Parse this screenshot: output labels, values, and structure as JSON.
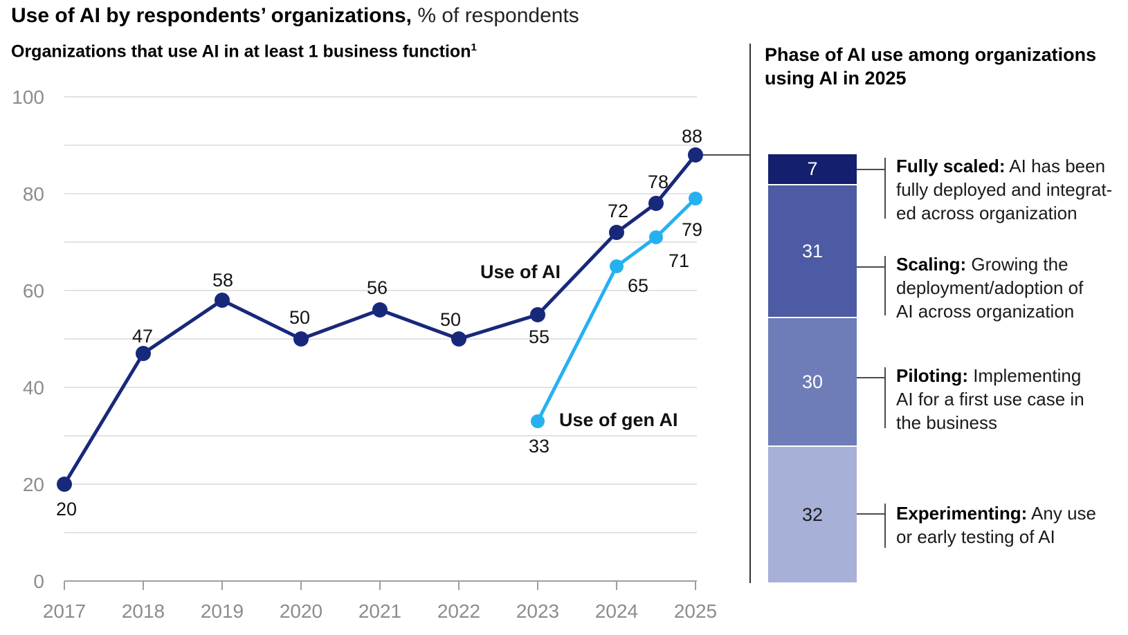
{
  "title": {
    "bold": "Use of AI by respondents’ organizations,",
    "regular": "% of respondents"
  },
  "subtitle": {
    "text": "Organizations that use AI in at least 1 business function",
    "footnote_marker": "1"
  },
  "right_panel": {
    "title_line1": "Phase of AI use among organizations",
    "title_line2": "using AI in 2025"
  },
  "colors": {
    "use_of_ai_line": "#18287a",
    "use_of_gen_ai_line": "#25b1f0",
    "gridline": "#d9d9d9",
    "axis": "#9e9e9e",
    "axis_label": "#8c8c8c",
    "data_label": "#141414",
    "connector": "#4a4a4a",
    "divider": "#333333"
  },
  "chart_data": [
    {
      "type": "line",
      "title": "Organizations that use AI in at least 1 business function",
      "unit": "% of respondents",
      "ylim": [
        0,
        100
      ],
      "ytick_labels": [
        0,
        20,
        40,
        60,
        80,
        100
      ],
      "gridline_step": 10,
      "grid": true,
      "xtick_labels": [
        "2017",
        "2018",
        "2019",
        "2020",
        "2021",
        "2022",
        "2023",
        "2024",
        "2025"
      ],
      "legend_position": "inline-annotations",
      "series": [
        {
          "name": "Use of AI",
          "color": "#18287a",
          "x": [
            2017,
            2018,
            2019,
            2020,
            2021,
            2022,
            2023,
            2024,
            2024.5,
            2025
          ],
          "values": [
            20,
            47,
            58,
            50,
            56,
            50,
            55,
            72,
            78,
            88
          ]
        },
        {
          "name": "Use of gen AI",
          "color": "#25b1f0",
          "x": [
            2023,
            2024,
            2024.5,
            2025
          ],
          "values": [
            33,
            65,
            71,
            79
          ]
        }
      ]
    },
    {
      "type": "bar",
      "stacked": true,
      "title": "Phase of AI use among organizations using AI in 2025",
      "total": 100,
      "segments": [
        {
          "label": "Fully scaled",
          "value": 7,
          "color": "#141f6e",
          "value_text_color": "#ffffff",
          "term": "Fully scaled:",
          "desc_lines": [
            "AI has been",
            "fully deployed and integrat-",
            "ed across organization"
          ],
          "description": "AI has been fully deployed and integrated across organization"
        },
        {
          "label": "Scaling",
          "value": 31,
          "color": "#4c5ba3",
          "value_text_color": "#ffffff",
          "term": "Scaling:",
          "desc_lines": [
            "Growing the",
            "deployment/adoption of",
            "AI across organization"
          ],
          "description": "Growing the deployment/adoption of AI across organization"
        },
        {
          "label": "Piloting",
          "value": 30,
          "color": "#6e7cb8",
          "value_text_color": "#ffffff",
          "term": "Piloting:",
          "desc_lines": [
            "Implementing",
            "AI for a first use case in",
            "the business"
          ],
          "description": "Implementing AI for a first use case in the business"
        },
        {
          "label": "Experimenting",
          "value": 32,
          "color": "#a7b0d7",
          "value_text_color": "#1a1a1a",
          "term": "Experimenting:",
          "desc_lines": [
            "Any use",
            "or early testing of AI"
          ],
          "description": "Any use or early testing of AI"
        }
      ]
    }
  ]
}
